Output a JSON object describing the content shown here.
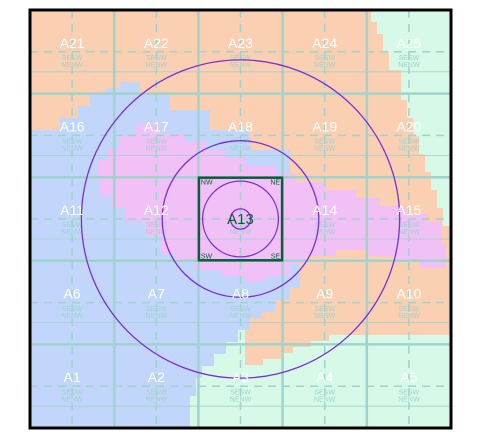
{
  "map": {
    "columns": 5,
    "rows": 5,
    "cells": [
      {
        "id": "A21",
        "col": 0,
        "row": 0
      },
      {
        "id": "A22",
        "col": 1,
        "row": 0
      },
      {
        "id": "A23",
        "col": 2,
        "row": 0
      },
      {
        "id": "A24",
        "col": 3,
        "row": 0
      },
      {
        "id": "A25",
        "col": 4,
        "row": 0
      },
      {
        "id": "A16",
        "col": 0,
        "row": 1
      },
      {
        "id": "A17",
        "col": 1,
        "row": 1
      },
      {
        "id": "A18",
        "col": 2,
        "row": 1
      },
      {
        "id": "A19",
        "col": 3,
        "row": 1
      },
      {
        "id": "A20",
        "col": 4,
        "row": 1
      },
      {
        "id": "A11",
        "col": 0,
        "row": 2
      },
      {
        "id": "A12",
        "col": 1,
        "row": 2
      },
      {
        "id": "A13",
        "col": 2,
        "row": 2
      },
      {
        "id": "A14",
        "col": 3,
        "row": 2
      },
      {
        "id": "A15",
        "col": 4,
        "row": 2
      },
      {
        "id": "A6",
        "col": 0,
        "row": 3
      },
      {
        "id": "A7",
        "col": 1,
        "row": 3
      },
      {
        "id": "A8",
        "col": 2,
        "row": 3
      },
      {
        "id": "A9",
        "col": 3,
        "row": 3
      },
      {
        "id": "A10",
        "col": 4,
        "row": 3
      },
      {
        "id": "A1",
        "col": 0,
        "row": 4
      },
      {
        "id": "A2",
        "col": 1,
        "row": 4
      },
      {
        "id": "A3",
        "col": 2,
        "row": 4
      },
      {
        "id": "A4",
        "col": 3,
        "row": 4
      },
      {
        "id": "A5",
        "col": 4,
        "row": 4
      }
    ],
    "focus_cell": "A13",
    "focus_corners": {
      "nw": "NW",
      "ne": "NE",
      "sw": "SW",
      "se": "SE"
    },
    "quadrant_labels": {
      "top": "SESW",
      "bottom": "NENW"
    },
    "colors": {
      "blue_region": "#c2d6fb",
      "pink_region": "#f0c0f7",
      "orange_region": "#fbcfb2",
      "green_region": "#d6fae7",
      "grid_line": "#9fd3cc",
      "ring": "#7b2fd6",
      "focus_box": "#0b5d3a",
      "frame": "#000000"
    }
  }
}
